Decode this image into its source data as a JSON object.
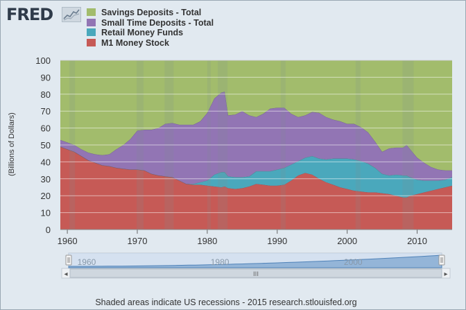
{
  "logo": {
    "text": "FRED",
    "mark_icon": "fred-line-chart-icon"
  },
  "footer": {
    "source_note": "Shaded areas indicate US recessions - 2015 research.stlouisfed.org"
  },
  "navigator": {
    "ticks": [
      "1960",
      "1980",
      "2000"
    ],
    "scrollbar": {
      "left_arrow": "◂",
      "right_arrow": "▸",
      "grip": "III"
    }
  },
  "chart_data": {
    "type": "area",
    "stacked": true,
    "title": "",
    "xlabel": "",
    "ylabel": "(Billions of Dollars)",
    "xlim": [
      1959,
      2015
    ],
    "ylim": [
      0,
      100
    ],
    "x_ticks": [
      1960,
      1970,
      1980,
      1990,
      2000,
      2010
    ],
    "y_ticks": [
      0,
      10,
      20,
      30,
      40,
      50,
      60,
      70,
      80,
      90,
      100
    ],
    "grid": true,
    "legend_position": "top-left",
    "x": [
      1959,
      1960,
      1961,
      1962,
      1963,
      1964,
      1965,
      1966,
      1967,
      1968,
      1969,
      1970,
      1971,
      1972,
      1973,
      1974,
      1975,
      1976,
      1977,
      1978,
      1979,
      1980,
      1981,
      1982,
      1982.5,
      1983,
      1984,
      1985,
      1986,
      1987,
      1988,
      1989,
      1990,
      1991,
      1992,
      1993,
      1994,
      1995,
      1996,
      1997,
      1998,
      1999,
      2000,
      2001,
      2002,
      2003,
      2004,
      2005,
      2006,
      2007,
      2008,
      2008.5,
      2009,
      2010,
      2011,
      2012,
      2013,
      2014,
      2015
    ],
    "series": [
      {
        "name": "M1 Money Stock",
        "color": "#c65a56",
        "values": [
          49,
          47.5,
          46,
          43.5,
          41,
          39.5,
          38,
          37.5,
          36.5,
          36,
          35.5,
          35.5,
          35,
          33,
          32,
          31.5,
          31,
          29,
          27,
          26.5,
          26.5,
          26,
          25.5,
          25,
          25.5,
          24.5,
          24,
          24.5,
          25.5,
          27,
          26.5,
          26,
          26,
          26.5,
          29,
          32,
          33.5,
          32.5,
          30,
          28,
          26.5,
          25,
          24,
          23,
          22.5,
          22,
          22,
          21.5,
          21,
          20,
          19,
          19,
          20,
          21,
          22,
          23,
          24,
          25,
          26
        ]
      },
      {
        "name": "Retail Money Funds",
        "color": "#4aa8bc",
        "values": [
          0,
          0,
          0,
          0,
          0,
          0,
          0,
          0,
          0,
          0,
          0,
          0,
          0,
          0,
          0,
          0,
          0,
          0,
          0,
          0.5,
          1.5,
          3,
          7,
          9,
          8.5,
          7,
          7,
          6.5,
          6,
          7.5,
          8,
          8.5,
          9.5,
          10,
          9.5,
          8.5,
          9,
          11,
          12,
          13.5,
          15.5,
          17,
          18,
          18.5,
          18,
          17,
          14.5,
          11.5,
          11,
          12.5,
          13,
          13,
          11,
          8.5,
          7,
          6,
          5,
          4.5,
          5
        ]
      },
      {
        "name": "Small Time Deposits - Total",
        "color": "#9275b4",
        "values": [
          4,
          4,
          4,
          4,
          4.5,
          5,
          6,
          7,
          11,
          14,
          18,
          23,
          24,
          26,
          28,
          31,
          32,
          33,
          35,
          35,
          36,
          40,
          45,
          47,
          47.5,
          36,
          37,
          39,
          36,
          32,
          34,
          37,
          36.5,
          35.5,
          30,
          26,
          25,
          26,
          27,
          25,
          23,
          22,
          20.5,
          21,
          20,
          18.5,
          15.5,
          13,
          16,
          16,
          16.5,
          18,
          16.5,
          13,
          10.5,
          8,
          6.5,
          5.5,
          4
        ]
      },
      {
        "name": "Savings Deposits - Total",
        "color": "#a2bc6c",
        "values": [
          47,
          48.5,
          50,
          52.5,
          54.5,
          55.5,
          56,
          55.5,
          52.5,
          50,
          46.5,
          41.5,
          41,
          41,
          40,
          37.5,
          37,
          38,
          38,
          38,
          36,
          31,
          22.5,
          19,
          18.5,
          32.5,
          32,
          30,
          32.5,
          33.5,
          31.5,
          28.5,
          28,
          28,
          31.5,
          33.5,
          32.5,
          30.5,
          31,
          33.5,
          35,
          36,
          37.5,
          37.5,
          39.5,
          42.5,
          48,
          54,
          52,
          51.5,
          51.5,
          50,
          52.5,
          57.5,
          60.5,
          63,
          64.5,
          65,
          65
        ]
      }
    ],
    "recessions": [
      [
        1960.3,
        1961.1
      ],
      [
        1969.9,
        1970.9
      ],
      [
        1973.9,
        1975.2
      ],
      [
        1980.0,
        1980.5
      ],
      [
        1981.5,
        1982.9
      ],
      [
        1990.5,
        1991.2
      ],
      [
        2001.2,
        2001.9
      ],
      [
        2007.9,
        2009.5
      ]
    ]
  }
}
